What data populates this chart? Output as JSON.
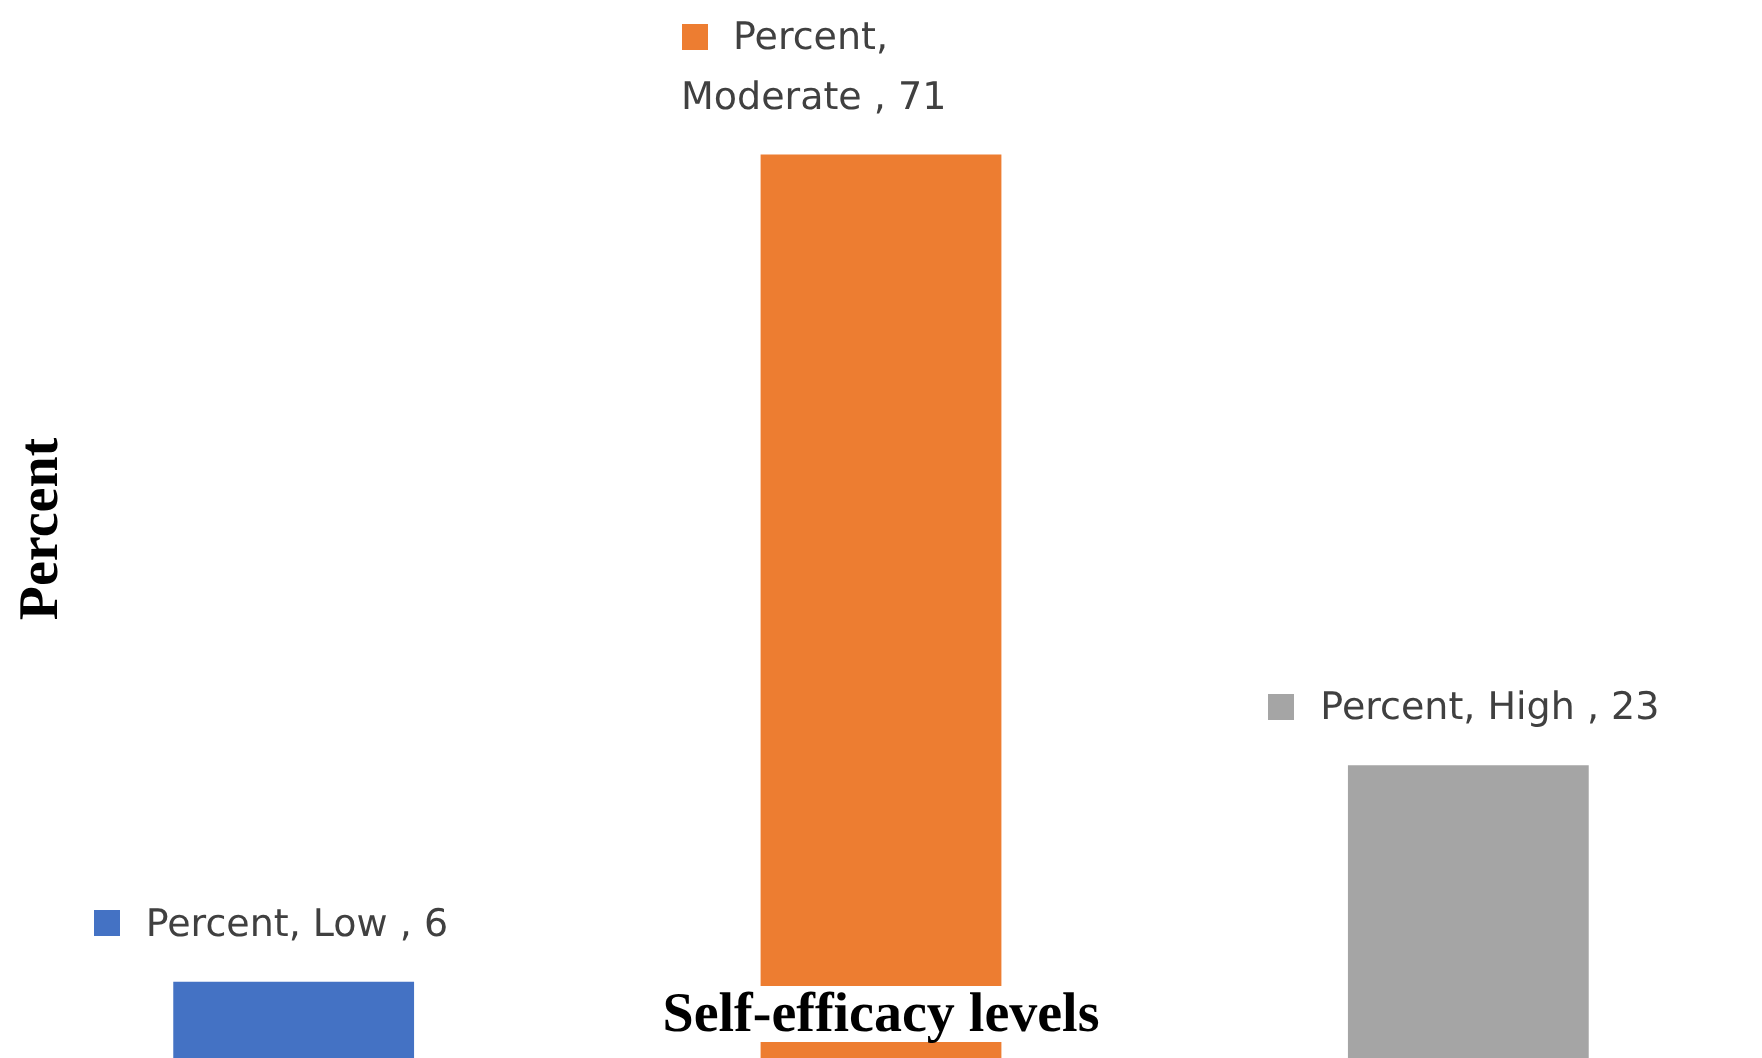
{
  "chart_data": {
    "type": "bar",
    "xlabel": "Self-efficacy levels",
    "ylabel": "Percent",
    "categories": [
      null,
      null,
      null
    ],
    "series": [
      {
        "values": [
          6,
          71,
          23
        ],
        "colors": [
          "#4472c4",
          "#ed7d31",
          "#a5a5a5"
        ],
        "value_labels": [
          "Percent, Low , 6",
          "Percent, Moderate , 71",
          "Percent, High , 23"
        ]
      }
    ],
    "tick_labels": false,
    "grid": false
  }
}
